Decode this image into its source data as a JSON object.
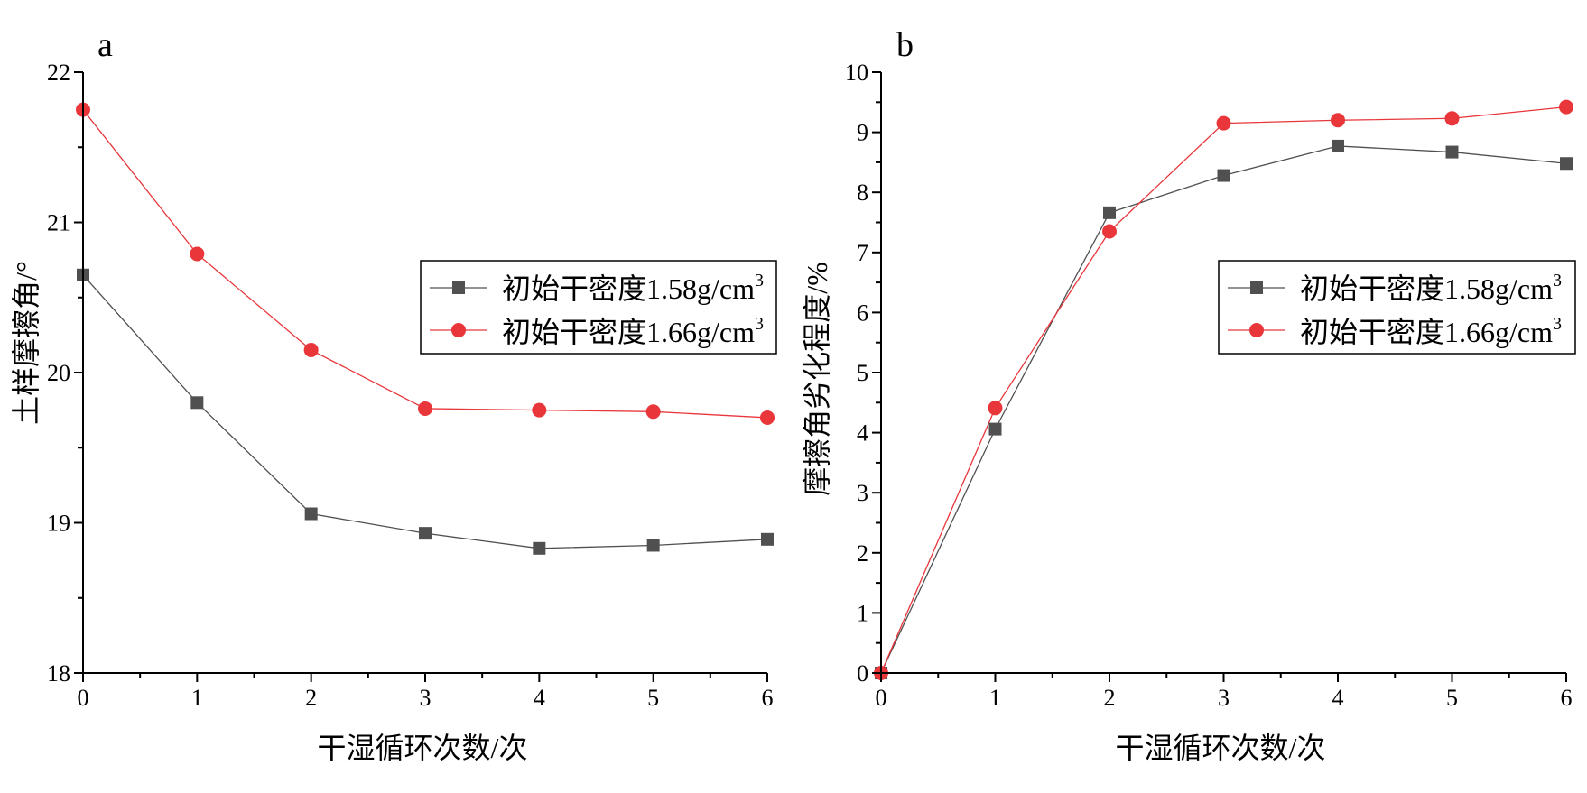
{
  "chart_data": [
    {
      "type": "line",
      "panel_label": "a",
      "title": "",
      "xlabel": "干湿循环次数/次",
      "ylabel": "土样摩擦角/°",
      "x": [
        0,
        1,
        2,
        3,
        4,
        5,
        6
      ],
      "xlim": [
        0,
        6
      ],
      "ylim": [
        18,
        22
      ],
      "xticks": [
        "0",
        "1",
        "2",
        "3",
        "4",
        "5",
        "6"
      ],
      "yticks": [
        "18",
        "19",
        "20",
        "21",
        "22"
      ],
      "legend_position": "middle-right",
      "series": [
        {
          "name_main": "初始干密度1.58g/cm",
          "name_sup": "3",
          "marker": "square",
          "color": "#505050",
          "values": [
            20.65,
            19.8,
            19.06,
            18.93,
            18.83,
            18.85,
            18.89
          ]
        },
        {
          "name_main": "初始干密度1.66g/cm",
          "name_sup": "3",
          "marker": "circle",
          "color": "#e8363b",
          "values": [
            21.75,
            20.79,
            20.15,
            19.76,
            19.75,
            19.74,
            19.7
          ]
        }
      ]
    },
    {
      "type": "line",
      "panel_label": "b",
      "title": "",
      "xlabel": "干湿循环次数/次",
      "ylabel": "摩擦角劣化程度/%",
      "x": [
        0,
        1,
        2,
        3,
        4,
        5,
        6
      ],
      "xlim": [
        0,
        6
      ],
      "ylim": [
        0,
        10
      ],
      "xticks": [
        "0",
        "1",
        "2",
        "3",
        "4",
        "5",
        "6"
      ],
      "yticks": [
        "0",
        "1",
        "2",
        "3",
        "4",
        "5",
        "6",
        "7",
        "8",
        "9",
        "10"
      ],
      "legend_position": "middle-right",
      "series": [
        {
          "name_main": "初始干密度1.58g/cm",
          "name_sup": "3",
          "marker": "square",
          "color": "#505050",
          "values": [
            0,
            4.06,
            7.66,
            8.28,
            8.77,
            8.67,
            8.48
          ]
        },
        {
          "name_main": "初始干密度1.66g/cm",
          "name_sup": "3",
          "marker": "circle",
          "color": "#e8363b",
          "values": [
            0,
            4.41,
            7.35,
            9.15,
            9.2,
            9.23,
            9.42
          ]
        }
      ]
    }
  ]
}
